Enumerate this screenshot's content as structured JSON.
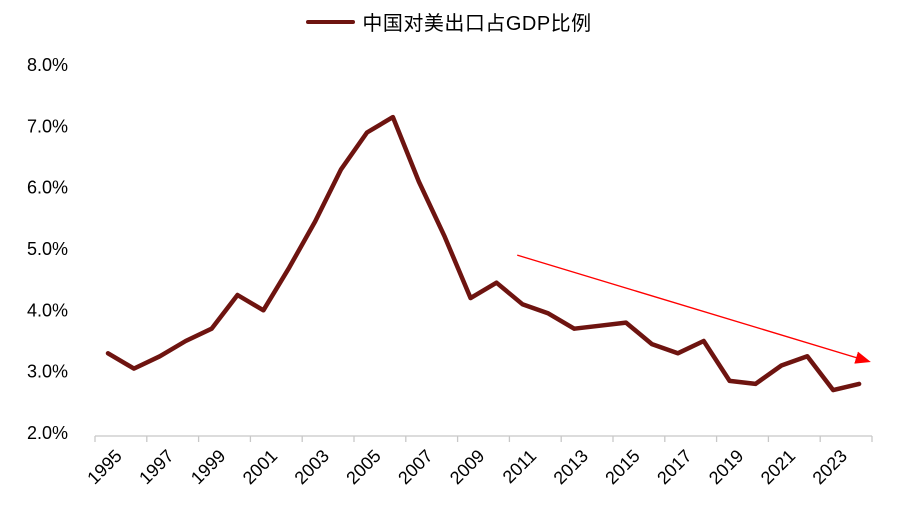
{
  "page": {
    "background": "#FFFFFF"
  },
  "chart_data": {
    "type": "line",
    "title": "",
    "legend": {
      "label": "中国对美出口占GDP比例",
      "position": "top-center",
      "swatch": "line"
    },
    "x": [
      1995,
      1996,
      1997,
      1998,
      1999,
      2000,
      2001,
      2002,
      2003,
      2004,
      2005,
      2006,
      2007,
      2008,
      2009,
      2010,
      2011,
      2012,
      2013,
      2014,
      2015,
      2016,
      2017,
      2018,
      2019,
      2020,
      2021,
      2022,
      2023,
      2024
    ],
    "series": [
      {
        "name": "中国对美出口占GDP比例",
        "color": "#6E1410",
        "line_width": 4.5,
        "values": [
          3.3,
          3.05,
          3.25,
          3.5,
          3.7,
          4.25,
          4.0,
          4.7,
          5.45,
          6.3,
          6.9,
          7.15,
          6.1,
          5.2,
          4.2,
          4.45,
          4.1,
          3.95,
          3.7,
          3.75,
          3.8,
          3.45,
          3.3,
          3.5,
          2.85,
          2.8,
          3.1,
          3.25,
          2.7,
          2.8
        ]
      }
    ],
    "x_tick_labels": [
      "1995",
      "1997",
      "1999",
      "2001",
      "2003",
      "2005",
      "2007",
      "2009",
      "2011",
      "2013",
      "2015",
      "2017",
      "2019",
      "2021",
      "2023"
    ],
    "y_tick_labels": [
      "8.0%",
      "7.0%",
      "6.0%",
      "5.0%",
      "4.0%",
      "3.0%",
      "2.0%"
    ],
    "ylim": [
      2.0,
      8.0
    ],
    "y_tick_step": 1.0,
    "x_label_rotation_deg": -45,
    "grid": "off",
    "axis_color": "#C8C8C8",
    "text_color": "#000000",
    "annotations": [
      {
        "type": "arrow",
        "color": "#FF0000",
        "from": {
          "year": 2010.8,
          "value": 4.9
        },
        "to": {
          "year": 2024.35,
          "value": 3.17
        }
      }
    ]
  }
}
